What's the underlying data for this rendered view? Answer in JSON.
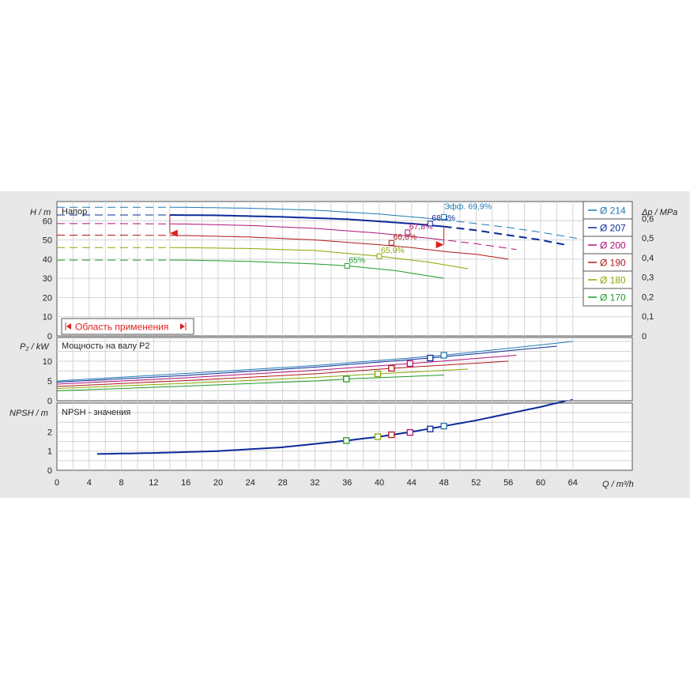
{
  "labels": {
    "h_axis": "H / m",
    "dp_axis": "Δp / MPa",
    "p2_axis": "P₂ / kW",
    "npsh_axis": "NPSH / m",
    "q_axis": "Q / m³/h",
    "head_title": "Напор",
    "power_title": "Мощность на валу P2",
    "npsh_title": "NPSH - значения",
    "range_label": "Область применения",
    "eff_prefix": "Эфф."
  },
  "legend": [
    {
      "label": "Ø 214",
      "color": "#1f78b4"
    },
    {
      "label": "Ø 207",
      "color": "#0b2a99"
    },
    {
      "label": "Ø 200",
      "color": "#b0107a"
    },
    {
      "label": "Ø 190",
      "color": "#b01818"
    },
    {
      "label": "Ø 180",
      "color": "#8aa800"
    },
    {
      "label": "Ø 170",
      "color": "#1f9a2a"
    }
  ],
  "chart_data": [
    {
      "type": "line",
      "title": "Напор",
      "xlabel": "Q / m³/h",
      "ylabel": "H / m",
      "y2label": "Δp / MPa",
      "xlim": [
        0,
        66
      ],
      "ylim": [
        0,
        70
      ],
      "xticks": [
        0,
        4,
        8,
        12,
        16,
        20,
        24,
        28,
        32,
        36,
        40,
        44,
        48,
        52,
        56,
        60,
        64
      ],
      "yticks": [
        0,
        10,
        20,
        30,
        40,
        50,
        60
      ],
      "y2ticks": [
        "0",
        "0,1",
        "0,2",
        "0,3",
        "0,4",
        "0,5",
        "0,6"
      ],
      "grid": true,
      "legend_position": "right",
      "series": [
        {
          "name": "Ø 214",
          "color": "#1f78b4",
          "dashed_until": 14,
          "solid_until": 48,
          "x": [
            0,
            8,
            16,
            24,
            32,
            40,
            48,
            56,
            60,
            65
          ],
          "y": [
            67,
            67,
            67,
            66.5,
            65.5,
            63.5,
            60.5,
            56.5,
            54,
            50.5
          ]
        },
        {
          "name": "Ø 207",
          "color": "#0b2a99",
          "dashed_until": 14,
          "solid_until": 48,
          "x": [
            0,
            8,
            14,
            20,
            28,
            36,
            44,
            48,
            52,
            56,
            60,
            63
          ],
          "y": [
            63,
            63,
            63,
            62.8,
            62,
            60.8,
            58.5,
            57,
            55,
            52.5,
            50,
            47.5
          ]
        },
        {
          "name": "Ø 200",
          "color": "#b0107a",
          "dashed_until": 14,
          "solid_until": 47,
          "x": [
            0,
            8,
            16,
            24,
            32,
            40,
            47,
            52,
            57
          ],
          "y": [
            58.5,
            58.5,
            58.3,
            57.5,
            56,
            53.5,
            50.5,
            48,
            45
          ]
        },
        {
          "name": "Ø 190",
          "color": "#b01818",
          "dashed_until": 14,
          "solid_until": 56,
          "x": [
            0,
            8,
            16,
            24,
            32,
            40,
            44,
            48,
            52,
            56
          ],
          "y": [
            52.5,
            52.5,
            52.3,
            51.5,
            50,
            47.5,
            46,
            44,
            42.5,
            40
          ]
        },
        {
          "name": "Ø 180",
          "color": "#8aa800",
          "dashed_until": 14,
          "solid_until": 51,
          "x": [
            0,
            8,
            16,
            24,
            32,
            40,
            46,
            51
          ],
          "y": [
            46,
            46,
            46,
            45.5,
            44.5,
            41.5,
            38.5,
            35
          ]
        },
        {
          "name": "Ø 170",
          "color": "#1f9a2a",
          "dashed_until": 14,
          "solid_until": 48,
          "x": [
            0,
            8,
            16,
            24,
            32,
            36,
            42,
            48
          ],
          "y": [
            39.5,
            39.5,
            39.5,
            38.8,
            37.5,
            36.5,
            34,
            30
          ]
        }
      ],
      "annotations": [
        {
          "text": "65%",
          "x": 36,
          "y": 36.5,
          "color": "#1f9a2a"
        },
        {
          "text": "65,9%",
          "x": 40,
          "y": 41.5,
          "color": "#8aa800"
        },
        {
          "text": "66,8%",
          "x": 41.5,
          "y": 48.5,
          "color": "#b01818"
        },
        {
          "text": "67,8%",
          "x": 43.5,
          "y": 54,
          "color": "#b0107a"
        },
        {
          "text": "68,8%",
          "x": 46.3,
          "y": 58.5,
          "color": "#0b2a99"
        },
        {
          "text": "69,9%",
          "x": 48,
          "y": 62,
          "color": "#1f78b4"
        }
      ],
      "operating_range": {
        "q_min": 14,
        "q_max": 48
      }
    },
    {
      "type": "line",
      "title": "Мощность на валу P2",
      "ylabel": "P₂ / kW",
      "xlim": [
        0,
        66
      ],
      "ylim": [
        0,
        16
      ],
      "yticks": [
        0,
        5,
        10
      ],
      "grid": true,
      "series": [
        {
          "name": "Ø 214",
          "color": "#1f78b4",
          "x": [
            0,
            16,
            32,
            48,
            64
          ],
          "y": [
            5,
            6.9,
            8.9,
            11.5,
            15
          ]
        },
        {
          "name": "Ø 207",
          "color": "#0b2a99",
          "x": [
            0,
            16,
            32,
            46.3,
            62
          ],
          "y": [
            4.7,
            6.4,
            8.5,
            10.8,
            13.8
          ]
        },
        {
          "name": "Ø 200",
          "color": "#b0107a",
          "x": [
            0,
            16,
            32,
            43.8,
            57
          ],
          "y": [
            4.2,
            5.8,
            7.7,
            9.4,
            11.5
          ]
        },
        {
          "name": "Ø 190",
          "color": "#b01818",
          "x": [
            0,
            16,
            32,
            41.5,
            56
          ],
          "y": [
            3.6,
            5.1,
            6.8,
            8.2,
            10
          ]
        },
        {
          "name": "Ø 180",
          "color": "#8aa800",
          "x": [
            0,
            16,
            32,
            39.8,
            51
          ],
          "y": [
            3.1,
            4.4,
            5.9,
            6.8,
            8
          ]
        },
        {
          "name": "Ø 170",
          "color": "#1f9a2a",
          "x": [
            0,
            16,
            32,
            35.9,
            48
          ],
          "y": [
            2.5,
            3.7,
            5,
            5.5,
            6.5
          ]
        }
      ],
      "markers": [
        {
          "x": 35.9,
          "y": 5.5,
          "color": "#1f9a2a"
        },
        {
          "x": 39.8,
          "y": 6.8,
          "color": "#8aa800"
        },
        {
          "x": 41.5,
          "y": 8.2,
          "color": "#b01818"
        },
        {
          "x": 43.8,
          "y": 9.4,
          "color": "#b0107a"
        },
        {
          "x": 46.3,
          "y": 10.8,
          "color": "#0b2a99"
        },
        {
          "x": 48,
          "y": 11.5,
          "color": "#1f78b4"
        }
      ]
    },
    {
      "type": "line",
      "title": "NPSH - значения",
      "ylabel": "NPSH / m",
      "xlim": [
        0,
        66
      ],
      "ylim": [
        0,
        3.5
      ],
      "yticks": [
        0,
        1,
        2
      ],
      "grid": true,
      "series": [
        {
          "name": "NPSH",
          "color": "#0b2a99",
          "x": [
            5,
            12,
            20,
            28,
            36,
            40,
            44,
            48,
            52,
            56,
            60,
            64
          ],
          "y": [
            0.85,
            0.9,
            1.0,
            1.2,
            1.55,
            1.75,
            2.0,
            2.3,
            2.6,
            2.95,
            3.3,
            3.7
          ]
        }
      ],
      "markers": [
        {
          "x": 35.9,
          "y": 1.55,
          "color": "#1f9a2a"
        },
        {
          "x": 39.8,
          "y": 1.75,
          "color": "#8aa800"
        },
        {
          "x": 41.5,
          "y": 1.85,
          "color": "#b01818"
        },
        {
          "x": 43.8,
          "y": 1.97,
          "color": "#b0107a"
        },
        {
          "x": 46.3,
          "y": 2.15,
          "color": "#0b2a99"
        },
        {
          "x": 48,
          "y": 2.3,
          "color": "#1f78b4"
        }
      ]
    }
  ]
}
